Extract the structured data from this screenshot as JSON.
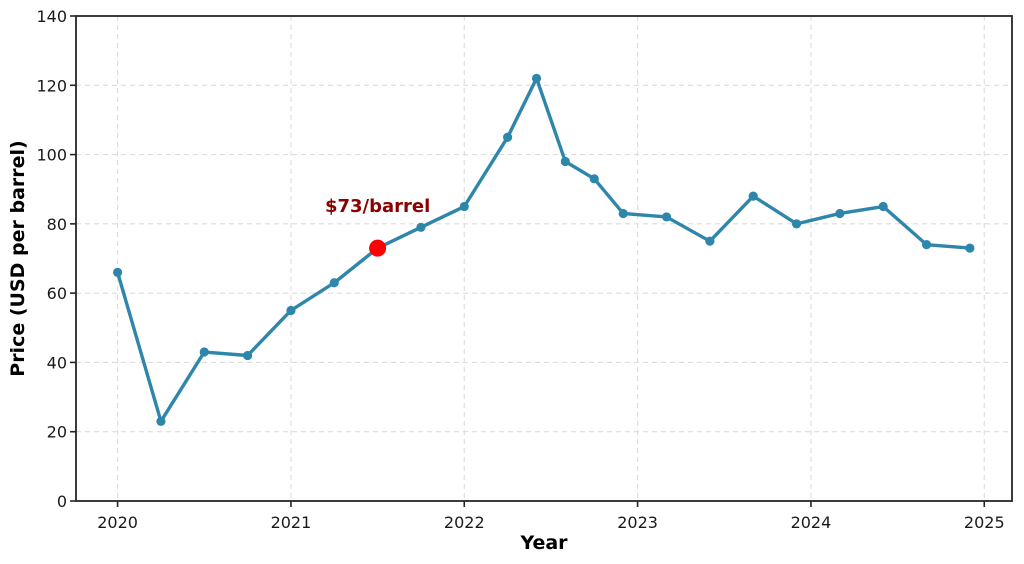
{
  "chart_data": {
    "type": "line",
    "title": "",
    "xlabel": "Year",
    "ylabel": "Price (USD per barrel)",
    "x": [
      2020.0,
      2020.25,
      2020.5,
      2020.75,
      2021.0,
      2021.25,
      2021.5,
      2021.75,
      2022.0,
      2022.25,
      2022.417,
      2022.583,
      2022.75,
      2022.917,
      2023.167,
      2023.417,
      2023.667,
      2023.917,
      2024.167,
      2024.417,
      2024.667,
      2024.917
    ],
    "y": [
      66,
      23,
      43,
      42,
      55,
      63,
      73,
      79,
      85,
      105,
      122,
      98,
      93,
      83,
      82,
      75,
      88,
      80,
      83,
      85,
      74,
      73
    ],
    "xlim": [
      2019.76,
      2025.16
    ],
    "ylim": [
      0,
      140
    ],
    "x_ticks": [
      2020,
      2021,
      2022,
      2023,
      2024,
      2025
    ],
    "y_ticks": [
      0,
      20,
      40,
      60,
      80,
      100,
      120,
      140
    ],
    "grid": true,
    "legend": false,
    "line_color": "#2E86AB",
    "marker_color": "#2E86AB",
    "highlight_point": {
      "x": 2021.5,
      "y": 73,
      "color": "#ff0000",
      "label": "$73/barrel",
      "label_color": "#8b0000"
    }
  },
  "colors": {
    "background": "#ffffff",
    "grid": "#dcdcdc",
    "spine": "#262626",
    "tick": "#262626",
    "tick_label": "#1a1a1a"
  }
}
